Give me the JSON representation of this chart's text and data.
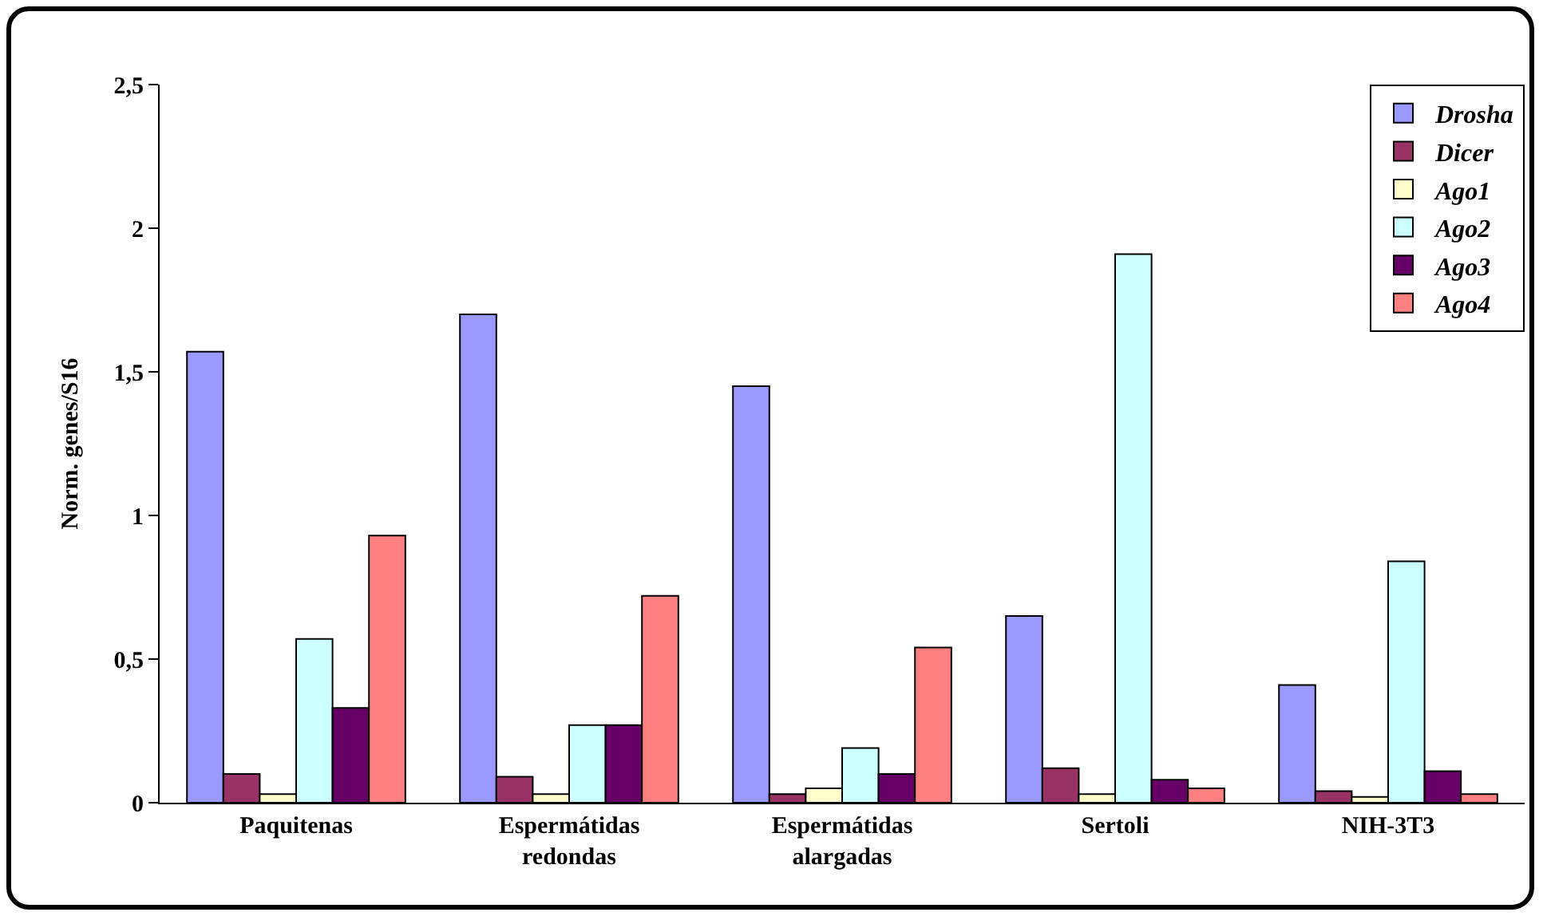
{
  "chart_data": {
    "type": "bar",
    "ylabel": "Norm. genes/S16",
    "categories": [
      "Paquitenas",
      "Espermátidas redondas",
      "Espermátidas alargadas",
      "Sertoli",
      "NIH-3T3"
    ],
    "series": [
      {
        "name": "Drosha",
        "color": "#9999ff",
        "values": [
          1.57,
          1.7,
          1.45,
          0.65,
          0.41
        ]
      },
      {
        "name": "Dicer",
        "color": "#993366",
        "values": [
          0.1,
          0.09,
          0.03,
          0.12,
          0.04
        ]
      },
      {
        "name": "Ago1",
        "color": "#ffffcc",
        "values": [
          0.03,
          0.03,
          0.05,
          0.03,
          0.02
        ]
      },
      {
        "name": "Ago2",
        "color": "#ccffff",
        "values": [
          0.57,
          0.27,
          0.19,
          1.91,
          0.84
        ]
      },
      {
        "name": "Ago3",
        "color": "#660066",
        "values": [
          0.33,
          0.27,
          0.1,
          0.08,
          0.11
        ]
      },
      {
        "name": "Ago4",
        "color": "#ff8080",
        "values": [
          0.93,
          0.72,
          0.54,
          0.05,
          0.03
        ]
      }
    ],
    "ylim": [
      0,
      2.5
    ],
    "yticks": [
      0,
      {
        "value": 0.5,
        "label": "0,5"
      },
      1,
      {
        "value": 1.5,
        "label": "1,5"
      },
      2,
      {
        "value": 2.5,
        "label": "2,5"
      }
    ],
    "grid": false,
    "legend": "top right"
  }
}
